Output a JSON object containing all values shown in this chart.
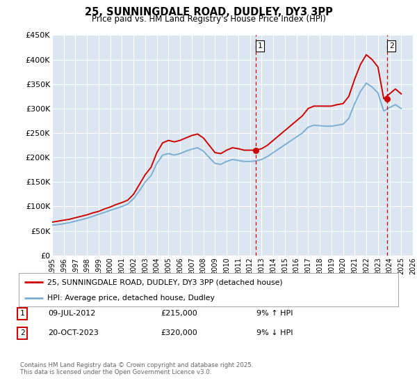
{
  "title": "25, SUNNINGDALE ROAD, DUDLEY, DY3 3PP",
  "subtitle": "Price paid vs. HM Land Registry's House Price Index (HPI)",
  "background_color": "#ffffff",
  "plot_bg_color": "#dce6f0",
  "grid_color": "#ffffff",
  "red_color": "#cc0000",
  "blue_color": "#7bafd4",
  "vline_color": "#cc0000",
  "ylim": [
    0,
    450000
  ],
  "yticks": [
    0,
    50000,
    100000,
    150000,
    200000,
    250000,
    300000,
    350000,
    400000,
    450000
  ],
  "ytick_labels": [
    "£0",
    "£50K",
    "£100K",
    "£150K",
    "£200K",
    "£250K",
    "£300K",
    "£350K",
    "£400K",
    "£450K"
  ],
  "legend_label_red": "25, SUNNINGDALE ROAD, DUDLEY, DY3 3PP (detached house)",
  "legend_label_blue": "HPI: Average price, detached house, Dudley",
  "annotation1": {
    "num": "1",
    "date": "09-JUL-2012",
    "price": "£215,000",
    "hpi": "9% ↑ HPI"
  },
  "annotation2": {
    "num": "2",
    "date": "20-OCT-2023",
    "price": "£320,000",
    "hpi": "9% ↓ HPI"
  },
  "footnote": "Contains HM Land Registry data © Crown copyright and database right 2025.\nThis data is licensed under the Open Government Licence v3.0.",
  "vline1_x": 2012.52,
  "vline2_x": 2023.8,
  "marker1_y": 215000,
  "marker2_y": 320000,
  "xlim": [
    1995,
    2026
  ],
  "xticks": [
    1995,
    1996,
    1997,
    1998,
    1999,
    2000,
    2001,
    2002,
    2003,
    2004,
    2005,
    2006,
    2007,
    2008,
    2009,
    2010,
    2011,
    2012,
    2013,
    2014,
    2015,
    2016,
    2017,
    2018,
    2019,
    2020,
    2021,
    2022,
    2023,
    2024,
    2025,
    2026
  ],
  "hpi_red_years": [
    1995.0,
    1995.5,
    1996.0,
    1996.5,
    1997.0,
    1997.5,
    1998.0,
    1998.5,
    1999.0,
    1999.5,
    2000.0,
    2000.5,
    2001.0,
    2001.5,
    2002.0,
    2002.5,
    2003.0,
    2003.5,
    2004.0,
    2004.5,
    2005.0,
    2005.5,
    2006.0,
    2006.5,
    2007.0,
    2007.5,
    2008.0,
    2008.5,
    2009.0,
    2009.5,
    2010.0,
    2010.5,
    2011.0,
    2011.5,
    2012.0,
    2012.5,
    2013.0,
    2013.5,
    2014.0,
    2014.5,
    2015.0,
    2015.5,
    2016.0,
    2016.5,
    2017.0,
    2017.5,
    2018.0,
    2018.5,
    2019.0,
    2019.5,
    2020.0,
    2020.5,
    2021.0,
    2021.5,
    2022.0,
    2022.5,
    2023.0,
    2023.5,
    2024.0,
    2024.5,
    2025.0
  ],
  "hpi_red_vals": [
    68000,
    70000,
    72000,
    74000,
    77000,
    80000,
    83000,
    87000,
    90000,
    95000,
    99000,
    104000,
    108000,
    113000,
    125000,
    145000,
    165000,
    180000,
    210000,
    230000,
    235000,
    232000,
    235000,
    240000,
    245000,
    248000,
    240000,
    225000,
    210000,
    208000,
    215000,
    220000,
    218000,
    215000,
    215000,
    215000,
    218000,
    225000,
    235000,
    245000,
    255000,
    265000,
    275000,
    285000,
    300000,
    305000,
    305000,
    305000,
    305000,
    308000,
    310000,
    325000,
    360000,
    390000,
    410000,
    400000,
    385000,
    320000,
    330000,
    340000,
    330000
  ],
  "hpi_blue_years": [
    1995.0,
    1995.5,
    1996.0,
    1996.5,
    1997.0,
    1997.5,
    1998.0,
    1998.5,
    1999.0,
    1999.5,
    2000.0,
    2000.5,
    2001.0,
    2001.5,
    2002.0,
    2002.5,
    2003.0,
    2003.5,
    2004.0,
    2004.5,
    2005.0,
    2005.5,
    2006.0,
    2006.5,
    2007.0,
    2007.5,
    2008.0,
    2008.5,
    2009.0,
    2009.5,
    2010.0,
    2010.5,
    2011.0,
    2011.5,
    2012.0,
    2012.5,
    2013.0,
    2013.5,
    2014.0,
    2014.5,
    2015.0,
    2015.5,
    2016.0,
    2016.5,
    2017.0,
    2017.5,
    2018.0,
    2018.5,
    2019.0,
    2019.5,
    2020.0,
    2020.5,
    2021.0,
    2021.5,
    2022.0,
    2022.5,
    2023.0,
    2023.5,
    2024.0,
    2024.5,
    2025.0
  ],
  "hpi_blue_vals": [
    62000,
    63000,
    65000,
    67000,
    70000,
    73000,
    76000,
    80000,
    84000,
    88000,
    92000,
    96000,
    100000,
    105000,
    116000,
    132000,
    150000,
    163000,
    188000,
    205000,
    208000,
    205000,
    208000,
    213000,
    217000,
    220000,
    213000,
    200000,
    188000,
    186000,
    192000,
    196000,
    194000,
    192000,
    192000,
    193000,
    196000,
    202000,
    210000,
    218000,
    226000,
    234000,
    242000,
    250000,
    262000,
    266000,
    265000,
    264000,
    264000,
    266000,
    268000,
    280000,
    310000,
    335000,
    352000,
    344000,
    332000,
    295000,
    302000,
    308000,
    300000
  ]
}
